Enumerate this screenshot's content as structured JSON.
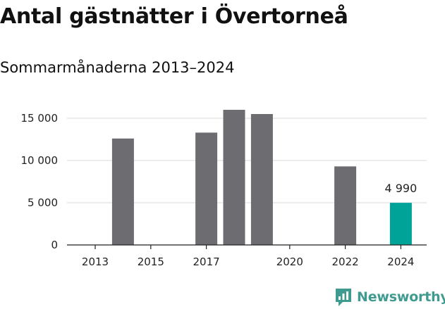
{
  "title": "Antal gästnätter i Övertorneå",
  "subtitle": "Sommarmånaderna 2013–2024",
  "brand": {
    "name": "Newsworthy",
    "icon": "newsworthy-logo-icon",
    "color": "#3f9b8f"
  },
  "chart_data": {
    "type": "bar",
    "categories": [
      "2013",
      "2014",
      "2015",
      "2016",
      "2017",
      "2018",
      "2019",
      "2020",
      "2021",
      "2022",
      "2023",
      "2024"
    ],
    "values": [
      null,
      12600,
      null,
      null,
      13300,
      16000,
      15500,
      null,
      null,
      9300,
      null,
      4990
    ],
    "x_tick_labels": [
      "2013",
      "2015",
      "2017",
      "2020",
      "2022",
      "2024"
    ],
    "y_ticks": [
      0,
      5000,
      10000,
      15000
    ],
    "y_tick_labels": [
      "0",
      "5 000",
      "10 000",
      "15 000"
    ],
    "ylim": [
      0,
      16000
    ],
    "grid": true,
    "bar_color": "#6d6c71",
    "highlight_color": "#00a398",
    "highlight_category": "2024",
    "data_labels": [
      {
        "category": "2024",
        "label": "4 990"
      }
    ]
  }
}
